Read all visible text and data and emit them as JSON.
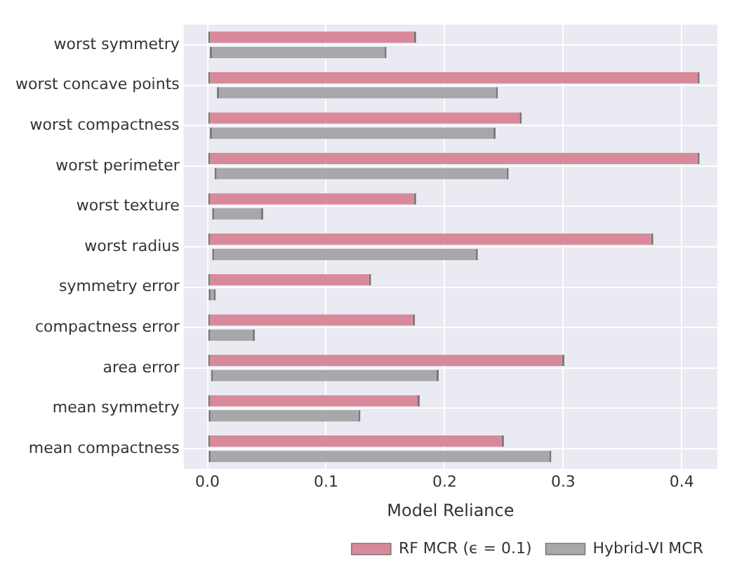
{
  "chart_data": {
    "type": "bar",
    "orientation": "horizontal",
    "xlabel": "Model Reliance",
    "categories": [
      "worst symmetry",
      "worst concave points",
      "worst compactness",
      "worst perimeter",
      "worst texture",
      "worst radius",
      "symmetry error",
      "compactness error",
      "area error",
      "mean symmetry",
      "mean compactness"
    ],
    "series": [
      {
        "name": "RF MCR (ϵ = 0.1)",
        "color": "#d98a9a",
        "base": [
          0,
          0,
          0,
          0,
          0,
          0,
          0,
          0,
          0,
          0,
          0
        ],
        "values": [
          0.176,
          0.415,
          0.265,
          0.415,
          0.176,
          0.376,
          0.138,
          0.175,
          0.301,
          0.179,
          0.25
        ]
      },
      {
        "name": "Hybrid-VI MCR",
        "color": "#a8a8ab",
        "base": [
          0.002,
          0.008,
          0.002,
          0.006,
          0.004,
          0.004,
          0.001,
          0,
          0.003,
          0.001,
          0.001
        ],
        "values": [
          0.149,
          0.237,
          0.241,
          0.248,
          0.043,
          0.224,
          0.006,
          0.04,
          0.192,
          0.128,
          0.289
        ]
      }
    ],
    "xlim": [
      -0.02,
      0.43
    ],
    "xticks": [
      {
        "value": 0,
        "label": "0.0"
      },
      0.1,
      0.2,
      0.3,
      0.4
    ],
    "grid": true,
    "legend": "bottom right"
  }
}
